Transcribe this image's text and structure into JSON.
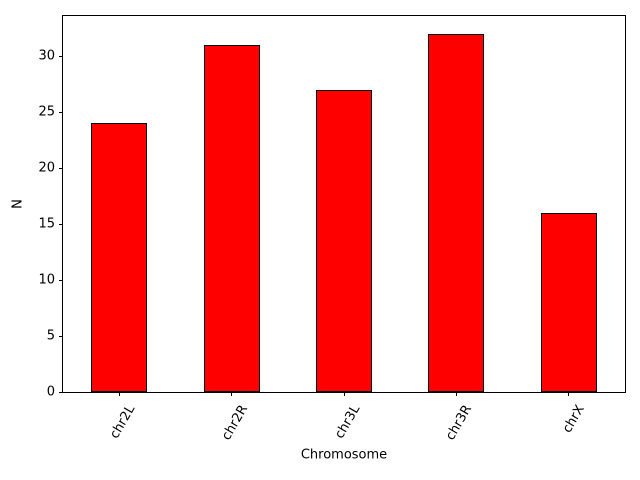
{
  "figure": {
    "background": "#ffffff"
  },
  "chart_data": {
    "type": "bar",
    "categories": [
      "chr2L",
      "chr2R",
      "chr3L",
      "chr3R",
      "chrX"
    ],
    "values": [
      24,
      31,
      27,
      32,
      16
    ],
    "title": "",
    "xlabel": "Chromosome",
    "ylabel": "N",
    "ylim": [
      0,
      33.6
    ],
    "yticks": [
      0,
      5,
      10,
      15,
      20,
      25,
      30
    ],
    "bar_color": "#ff0000",
    "bar_edge_color": "#000000",
    "bar_width_fraction": 0.5,
    "xtick_rotation_deg": 60,
    "grid": false,
    "legend": null
  }
}
